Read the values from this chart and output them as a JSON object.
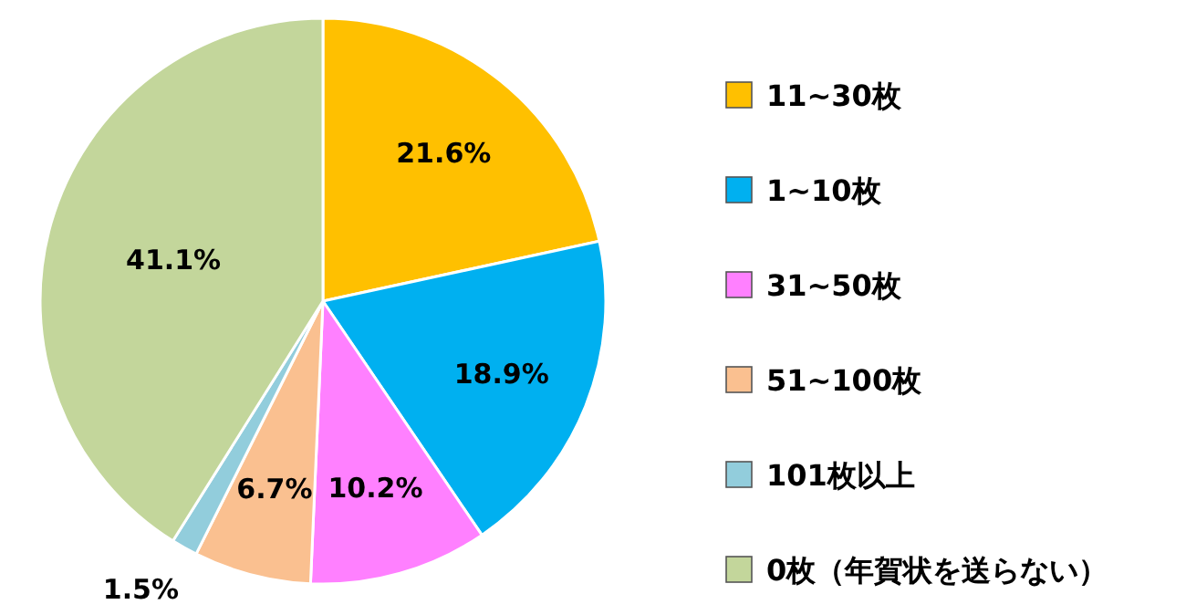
{
  "chart_data": {
    "type": "pie",
    "categories": [
      "11~30枚",
      "1~10枚",
      "31~50枚",
      "51~100枚",
      "101枚以上",
      "0枚（年賀状を送らない）"
    ],
    "values": [
      21.6,
      18.9,
      10.2,
      6.7,
      1.5,
      41.1
    ],
    "colors": [
      "#ffc000",
      "#00b0f0",
      "#ff80ff",
      "#fac090",
      "#92cddc",
      "#c3d69b"
    ],
    "value_labels": [
      "21.6%",
      "18.9%",
      "10.2%",
      "6.7%",
      "1.5%",
      "41.1%"
    ],
    "legend": "right"
  }
}
